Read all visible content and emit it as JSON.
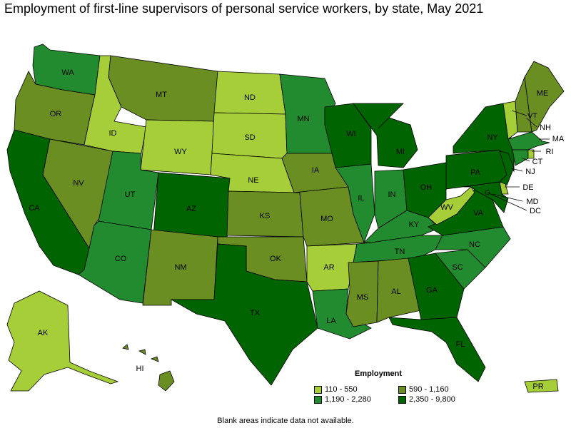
{
  "title": "Employment of first-line supervisors of personal service workers, by state, May 2021",
  "legend": {
    "title": "Employment",
    "items": [
      {
        "label": "110 - 550",
        "color": "#a6ce39"
      },
      {
        "label": "590 - 1,160",
        "color": "#6b8e23"
      },
      {
        "label": "1,190 - 2,280",
        "color": "#238b2f"
      },
      {
        "label": "2,350 - 9,800",
        "color": "#006400"
      }
    ]
  },
  "footnote": "Blank areas indicate data not available.",
  "states": [
    {
      "abbr": "WA",
      "class": 2
    },
    {
      "abbr": "OR",
      "class": 1
    },
    {
      "abbr": "CA",
      "class": 3
    },
    {
      "abbr": "NV",
      "class": 1
    },
    {
      "abbr": "ID",
      "class": 0
    },
    {
      "abbr": "MT",
      "class": 1
    },
    {
      "abbr": "WY",
      "class": 0
    },
    {
      "abbr": "UT",
      "class": 2
    },
    {
      "abbr": "AZ",
      "class": 2
    },
    {
      "abbr": "CO",
      "class": 3
    },
    {
      "abbr": "NM",
      "class": 1
    },
    {
      "abbr": "ND",
      "class": 0
    },
    {
      "abbr": "SD",
      "class": 0
    },
    {
      "abbr": "NE",
      "class": 0
    },
    {
      "abbr": "KS",
      "class": 1
    },
    {
      "abbr": "OK",
      "class": 1
    },
    {
      "abbr": "TX",
      "class": 3
    },
    {
      "abbr": "MN",
      "class": 2
    },
    {
      "abbr": "IA",
      "class": 1
    },
    {
      "abbr": "MO",
      "class": 1
    },
    {
      "abbr": "AR",
      "class": 0
    },
    {
      "abbr": "LA",
      "class": 2
    },
    {
      "abbr": "WI",
      "class": 3
    },
    {
      "abbr": "IL",
      "class": 2
    },
    {
      "abbr": "MI",
      "class": 3
    },
    {
      "abbr": "IN",
      "class": 2
    },
    {
      "abbr": "OH",
      "class": 3
    },
    {
      "abbr": "KY",
      "class": 2
    },
    {
      "abbr": "TN",
      "class": 2
    },
    {
      "abbr": "MS",
      "class": 1
    },
    {
      "abbr": "AL",
      "class": 1
    },
    {
      "abbr": "GA",
      "class": 3
    },
    {
      "abbr": "FL",
      "class": 3
    },
    {
      "abbr": "SC",
      "class": 2
    },
    {
      "abbr": "NC",
      "class": 2
    },
    {
      "abbr": "VA",
      "class": 3
    },
    {
      "abbr": "WV",
      "class": 0
    },
    {
      "abbr": "PA",
      "class": 3
    },
    {
      "abbr": "NY",
      "class": 3
    },
    {
      "abbr": "VT",
      "class": 0
    },
    {
      "abbr": "NH",
      "class": 1
    },
    {
      "abbr": "ME",
      "class": 1
    },
    {
      "abbr": "MA",
      "class": 2
    },
    {
      "abbr": "RI",
      "class": 0
    },
    {
      "abbr": "CT",
      "class": 2
    },
    {
      "abbr": "NJ",
      "class": 3
    },
    {
      "abbr": "DE",
      "class": 0
    },
    {
      "abbr": "MD",
      "class": 3
    },
    {
      "abbr": "DC",
      "class": 3
    },
    {
      "abbr": "AK",
      "class": 0
    },
    {
      "abbr": "HI",
      "class": 1
    },
    {
      "abbr": "PR",
      "class": 0
    }
  ]
}
